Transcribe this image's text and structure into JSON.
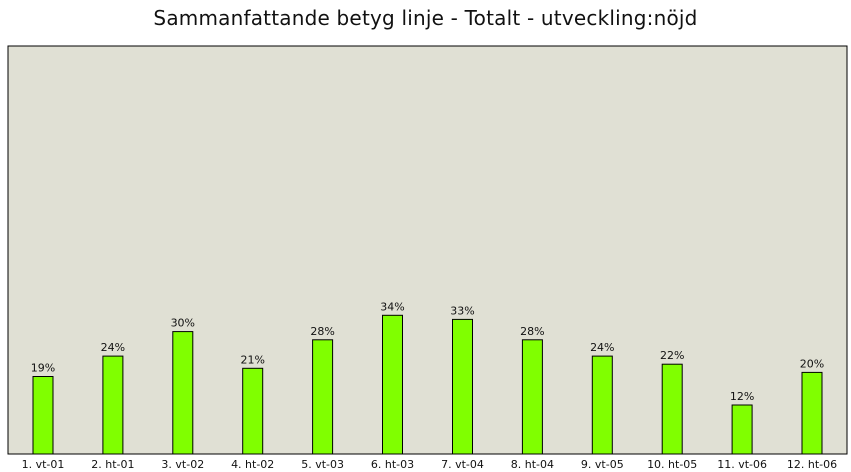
{
  "colors": {
    "plot_background": "#e0e0d4",
    "bar_fill": "#80ff00",
    "bar_stroke": "#000000"
  },
  "chart_data": {
    "type": "bar",
    "title": "Sammanfattande betyg linje - Totalt - utveckling:nöjd",
    "xlabel": "",
    "ylabel": "",
    "ylim": [
      0,
      100
    ],
    "grid": false,
    "categories": [
      "1. vt-01",
      "2. ht-01",
      "3. vt-02",
      "4. ht-02",
      "5. vt-03",
      "6. ht-03",
      "7. vt-04",
      "8. ht-04",
      "9. vt-05",
      "10. ht-05",
      "11. vt-06",
      "12. ht-06"
    ],
    "values": [
      19,
      24,
      30,
      21,
      28,
      34,
      33,
      28,
      24,
      22,
      12,
      20
    ],
    "value_labels": [
      "19%",
      "24%",
      "30%",
      "21%",
      "28%",
      "34%",
      "33%",
      "28%",
      "24%",
      "22%",
      "12%",
      "20%"
    ]
  }
}
